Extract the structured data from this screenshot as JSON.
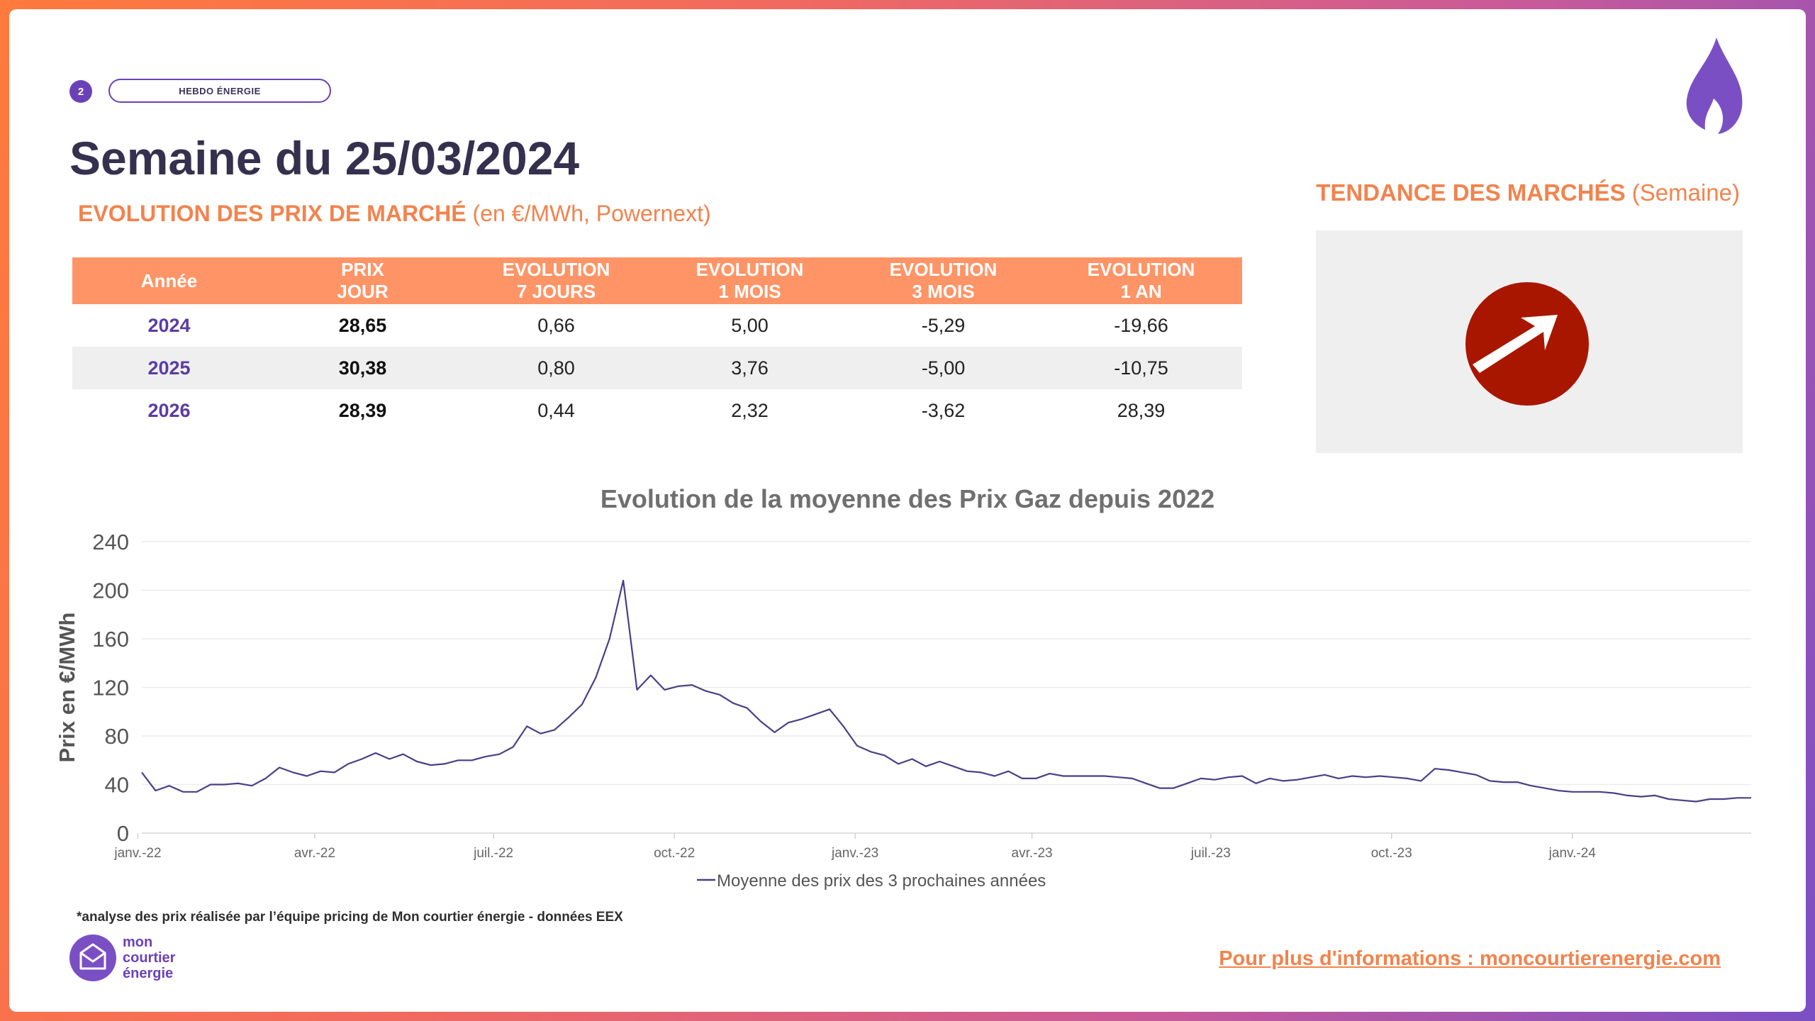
{
  "header": {
    "page_number": "2",
    "tag": "HEBDO ÉNERGIE",
    "title": "Semaine du 25/03/2024"
  },
  "prices_section": {
    "title_strong": "EVOLUTION DES PRIX DE MARCHÉ",
    "title_light": "(en €/MWh, Powernext)"
  },
  "trend_section": {
    "title_strong": "TENDANCE DES MARCHÉS",
    "title_light": "(Semaine)",
    "arrow_icon": "arrow-up-right-icon",
    "arrow_color": "#a81600"
  },
  "table": {
    "headers": [
      [
        "Année",
        ""
      ],
      [
        "PRIX",
        "JOUR"
      ],
      [
        "EVOLUTION",
        "7 JOURS"
      ],
      [
        "EVOLUTION",
        "1 MOIS"
      ],
      [
        "EVOLUTION",
        "3 MOIS"
      ],
      [
        "EVOLUTION",
        "1 AN"
      ]
    ],
    "rows": [
      [
        "2024",
        "28,65",
        "0,66",
        "5,00",
        "-5,29",
        "-19,66"
      ],
      [
        "2025",
        "30,38",
        "0,80",
        "3,76",
        "-5,00",
        "-10,75"
      ],
      [
        "2026",
        "28,39",
        "0,44",
        "2,32",
        "-3,62",
        "28,39"
      ]
    ],
    "header_color": "#ff9466",
    "year_color": "#5b3ca5"
  },
  "chart_data": {
    "type": "line",
    "title": "Evolution de la moyenne des Prix Gaz depuis 2022",
    "xlabel": "",
    "ylabel": "Prix en €/MWh",
    "ylim": [
      0,
      240
    ],
    "yticks": [
      0,
      40,
      80,
      120,
      160,
      200,
      240
    ],
    "x_tick_labels": [
      "janv.-22",
      "avr.-22",
      "juil.-22",
      "oct.-22",
      "janv.-23",
      "avr.-23",
      "juil.-23",
      "oct.-23",
      "janv.-24"
    ],
    "grid": true,
    "legend_position": "bottom",
    "series": [
      {
        "name": "Moyenne des prix des 3 prochaines années",
        "color": "#4a3f86",
        "x_start": "2022-01-03",
        "x_step_days": 7,
        "values": [
          50,
          35,
          39,
          34,
          34,
          40,
          40,
          41,
          39,
          45,
          54,
          50,
          47,
          51,
          50,
          57,
          61,
          66,
          61,
          65,
          59,
          56,
          57,
          60,
          60,
          63,
          65,
          71,
          88,
          82,
          85,
          95,
          106,
          128,
          160,
          208,
          118,
          130,
          118,
          121,
          122,
          117,
          114,
          107,
          103,
          92,
          83,
          91,
          94,
          98,
          102,
          88,
          72,
          67,
          64,
          57,
          61,
          55,
          59,
          55,
          51,
          50,
          47,
          51,
          45,
          45,
          49,
          47,
          47,
          47,
          47,
          46,
          45,
          41,
          37,
          37,
          41,
          45,
          44,
          46,
          47,
          41,
          45,
          43,
          44,
          46,
          48,
          45,
          47,
          46,
          47,
          46,
          45,
          43,
          53,
          52,
          50,
          48,
          43,
          42,
          42,
          39,
          37,
          35,
          34,
          34,
          34,
          33,
          31,
          30,
          31,
          28,
          27,
          26,
          28,
          28,
          29,
          29
        ]
      }
    ]
  },
  "footnote": "*analyse des prix réalisée par l’équipe pricing de Mon courtier énergie -  données EEX",
  "logo": {
    "line1": "mon",
    "line2": "courtier",
    "line3": "énergie"
  },
  "footer": {
    "link_text": "Pour plus d'informations : moncourtierenergie.com"
  }
}
